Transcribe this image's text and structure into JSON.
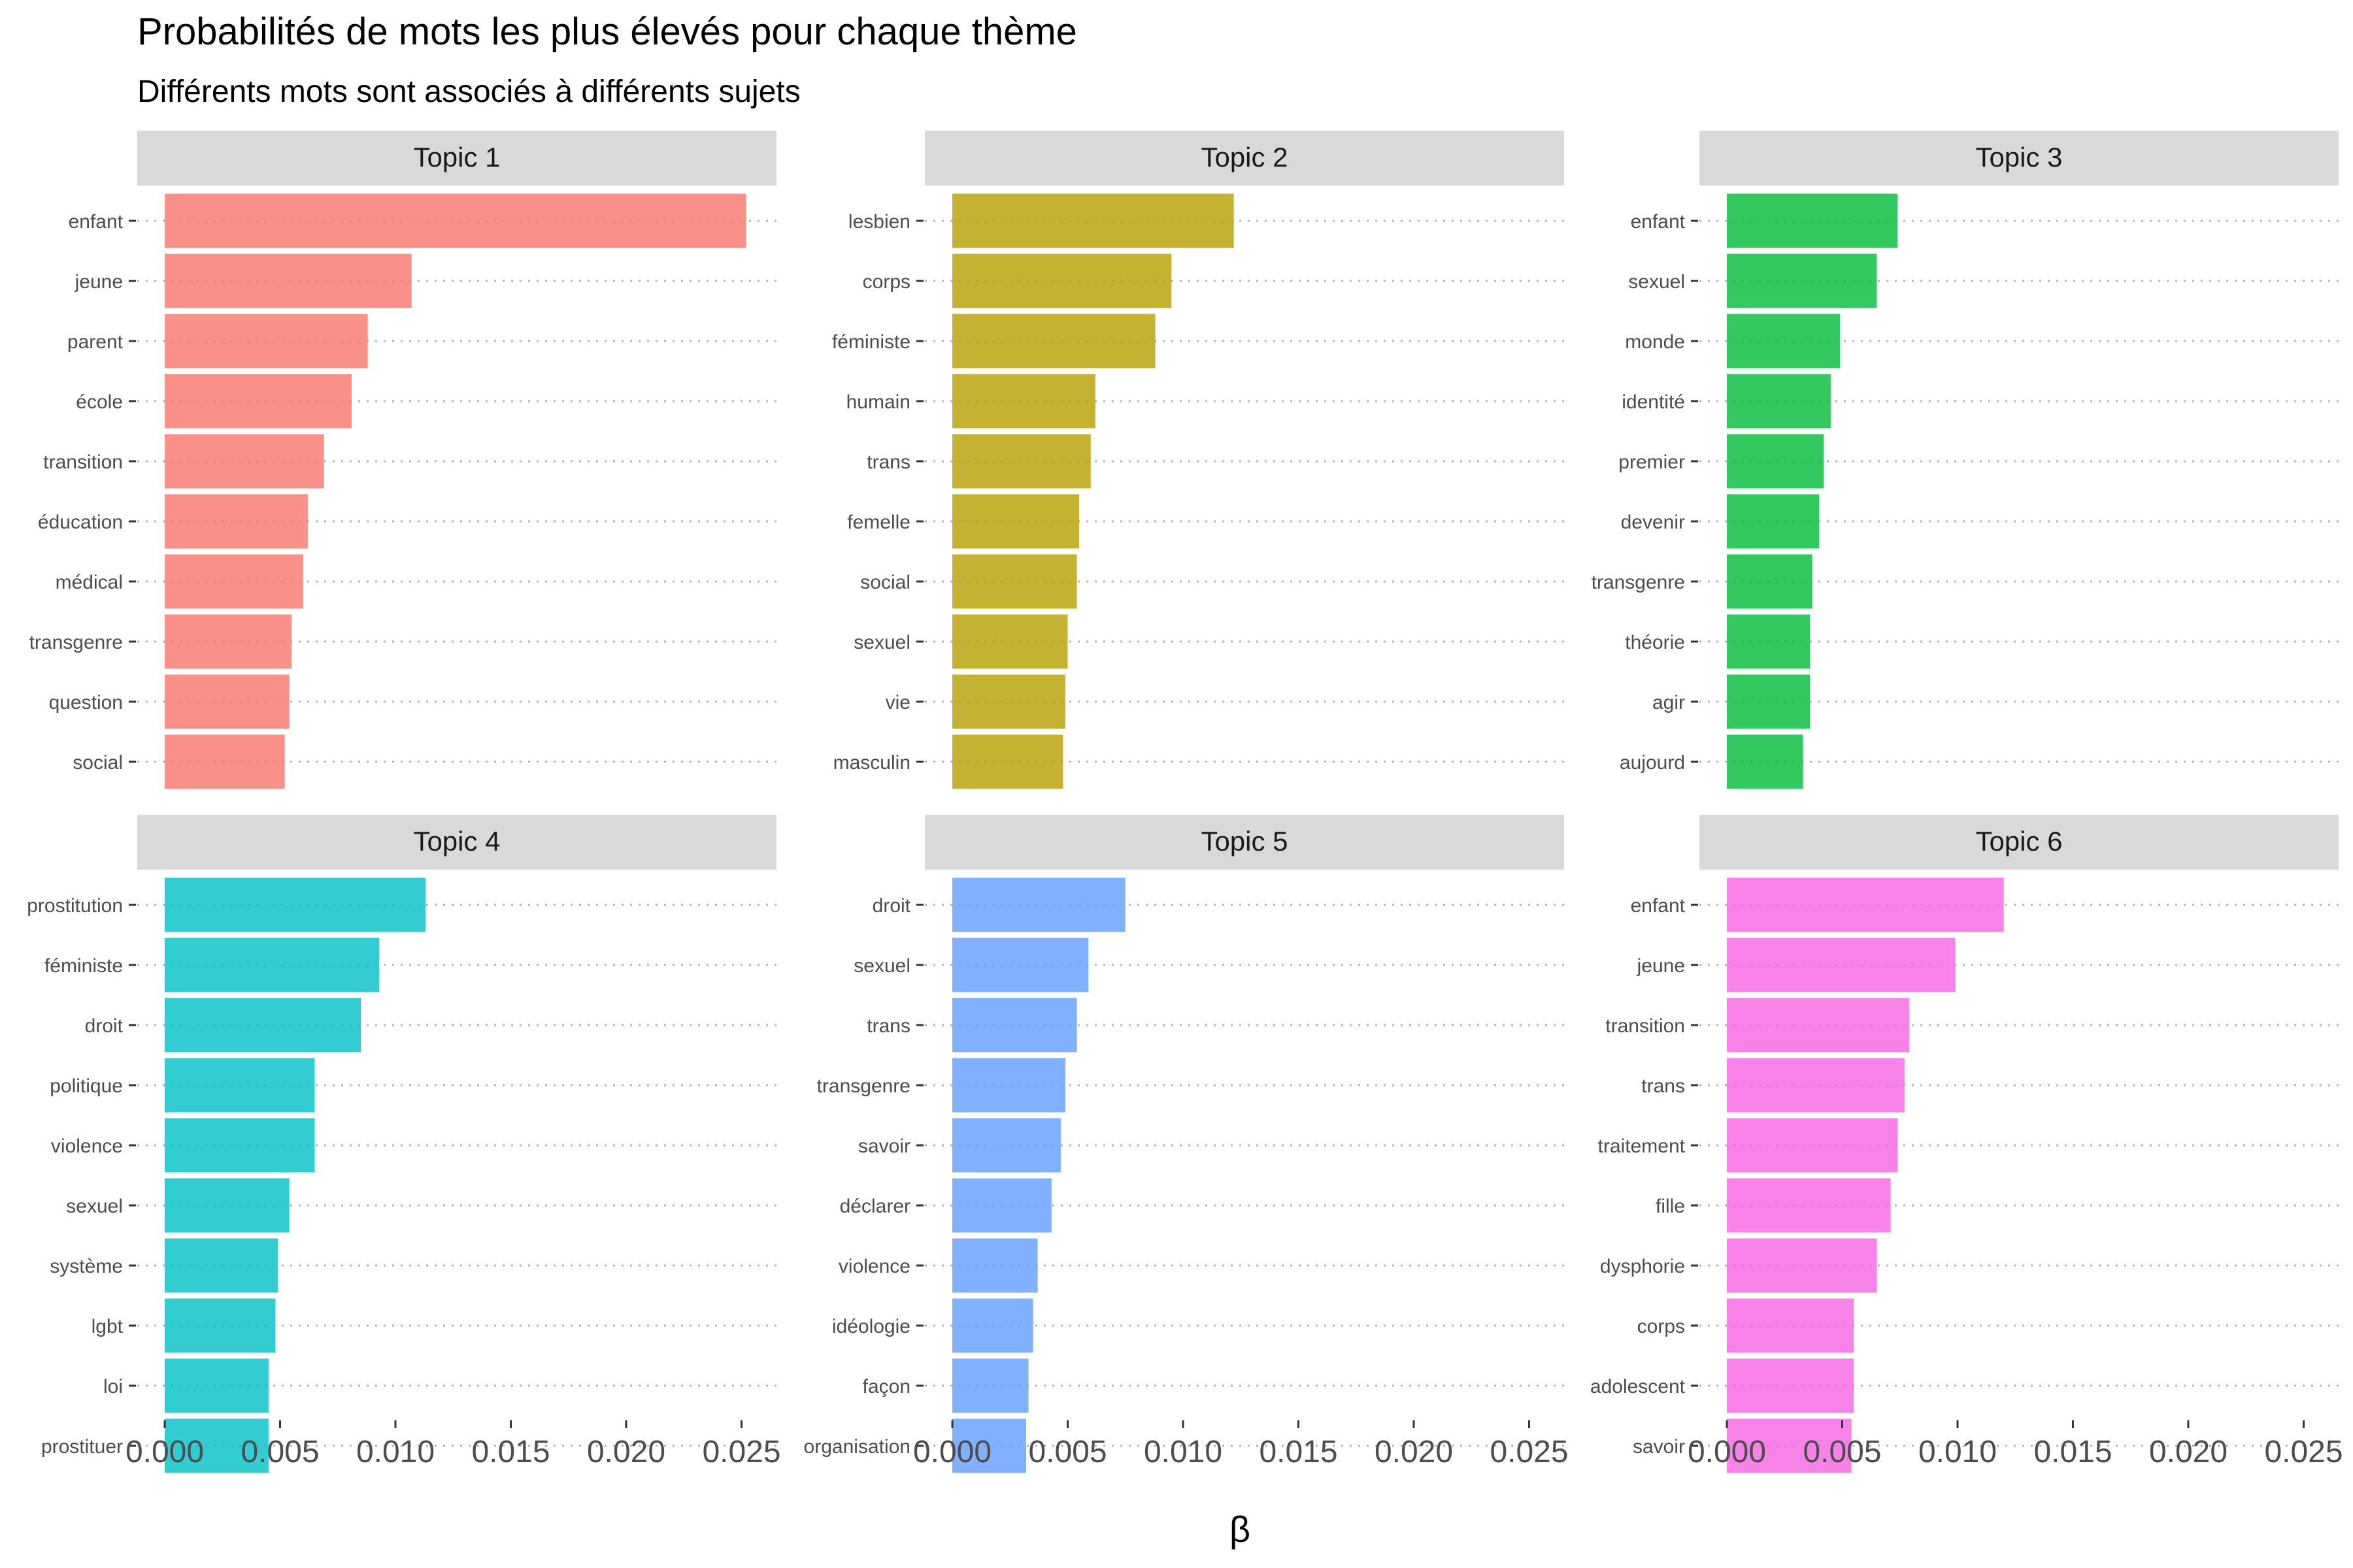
{
  "chart_data": {
    "type": "bar",
    "orientation": "horizontal",
    "title": "Probabilités de mots les plus élevés pour chaque thème",
    "subtitle": "Différents mots sont associés à différents sujets",
    "xlabel": "β",
    "xlim": [
      0,
      0.0262
    ],
    "x_ticks": [
      "0.000",
      "0.005",
      "0.010",
      "0.015",
      "0.020",
      "0.025"
    ],
    "grid": "dotted horizontal",
    "facets": [
      {
        "name": "Topic 1",
        "color": "#F8766D",
        "categories": [
          "enfant",
          "jeune",
          "parent",
          "école",
          "transition",
          "éducation",
          "médical",
          "transgenre",
          "question",
          "social"
        ],
        "values": [
          0.0252,
          0.0107,
          0.0088,
          0.0081,
          0.0069,
          0.0062,
          0.006,
          0.0055,
          0.0054,
          0.0052
        ]
      },
      {
        "name": "Topic 2",
        "color": "#B79F00",
        "categories": [
          "lesbien",
          "corps",
          "féministe",
          "humain",
          "trans",
          "femelle",
          "social",
          "sexuel",
          "vie",
          "masculin"
        ],
        "values": [
          0.0122,
          0.0095,
          0.0088,
          0.0062,
          0.006,
          0.0055,
          0.0054,
          0.005,
          0.0049,
          0.0048
        ]
      },
      {
        "name": "Topic 3",
        "color": "#00BA38",
        "categories": [
          "enfant",
          "sexuel",
          "monde",
          "identité",
          "premier",
          "devenir",
          "transgenre",
          "théorie",
          "agir",
          "aujourd"
        ],
        "values": [
          0.0074,
          0.0065,
          0.0049,
          0.0045,
          0.0042,
          0.004,
          0.0037,
          0.0036,
          0.0036,
          0.0033
        ]
      },
      {
        "name": "Topic 4",
        "color": "#00BFC4",
        "categories": [
          "prostitution",
          "féministe",
          "droit",
          "politique",
          "violence",
          "sexuel",
          "système",
          "lgbt",
          "loi",
          "prostituer"
        ],
        "values": [
          0.0113,
          0.0093,
          0.0085,
          0.0065,
          0.0065,
          0.0054,
          0.0049,
          0.0048,
          0.0045,
          0.0045
        ]
      },
      {
        "name": "Topic 5",
        "color": "#619CFF",
        "categories": [
          "droit",
          "sexuel",
          "trans",
          "transgenre",
          "savoir",
          "déclarer",
          "violence",
          "idéologie",
          "façon",
          "organisation"
        ],
        "values": [
          0.0075,
          0.0059,
          0.0054,
          0.0049,
          0.0047,
          0.0043,
          0.0037,
          0.0035,
          0.0033,
          0.0032
        ]
      },
      {
        "name": "Topic 6",
        "color": "#F564E3",
        "categories": [
          "enfant",
          "jeune",
          "transition",
          "trans",
          "traitement",
          "fille",
          "dysphorie",
          "corps",
          "adolescent",
          "savoir"
        ],
        "values": [
          0.012,
          0.0099,
          0.0079,
          0.0077,
          0.0074,
          0.0071,
          0.0065,
          0.0055,
          0.0055,
          0.0054
        ]
      }
    ]
  }
}
